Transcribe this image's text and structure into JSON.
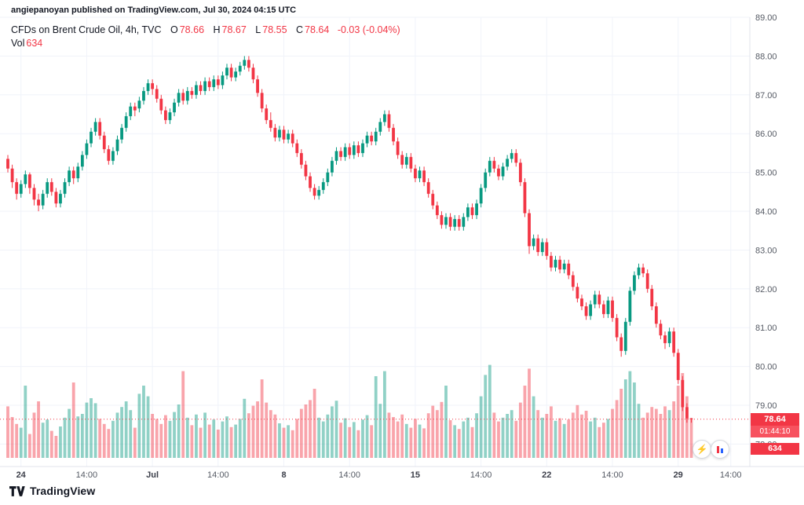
{
  "window": {
    "published_line": "angiepanoyan published on TradingView.com, Jul 30, 2024 04:15 UTC"
  },
  "legend": {
    "title": "CFDs on Brent Crude Oil, 4h, TVC",
    "o_label": "O",
    "o": "78.66",
    "h_label": "H",
    "h": "78.67",
    "l_label": "L",
    "l": "78.55",
    "c_label": "C",
    "c": "78.64",
    "change": "-0.03 (-0.04%)",
    "vol_label": "Vol",
    "vol": "634"
  },
  "price_axis": {
    "ticks": [
      "89.00",
      "88.00",
      "87.00",
      "86.00",
      "85.00",
      "84.00",
      "83.00",
      "82.00",
      "81.00",
      "80.00",
      "79.00",
      "78.00"
    ]
  },
  "time_axis": {
    "labels": [
      {
        "text": "24",
        "index": 3,
        "major": true
      },
      {
        "text": "14:00",
        "index": 18,
        "major": false
      },
      {
        "text": "Jul",
        "index": 33,
        "major": true
      },
      {
        "text": "14:00",
        "index": 48,
        "major": false
      },
      {
        "text": "8",
        "index": 63,
        "major": true
      },
      {
        "text": "14:00",
        "index": 78,
        "major": false
      },
      {
        "text": "15",
        "index": 93,
        "major": true
      },
      {
        "text": "14:00",
        "index": 108,
        "major": false
      },
      {
        "text": "22",
        "index": 123,
        "major": true
      },
      {
        "text": "14:00",
        "index": 138,
        "major": false
      },
      {
        "text": "29",
        "index": 153,
        "major": true
      },
      {
        "text": "14:00",
        "index": 165,
        "major": false
      }
    ]
  },
  "last_price": {
    "label": "78.64",
    "countdown": "01:44:10",
    "volume_label": "634"
  },
  "footer": {
    "brand": "TradingView"
  },
  "colors": {
    "up": "#089981",
    "down": "#f23645",
    "vol_up": "rgba(8,153,129,0.45)",
    "vol_down": "rgba(242,54,69,0.45)",
    "grid": "#f0f3fa",
    "axis_text": "#555a64",
    "axis_text_major": "#3c3f4a",
    "border": "#e0e3eb",
    "badge_bg": "#f23645",
    "countdown_bg": "#f7525f",
    "text": "#131722"
  },
  "chart_data": {
    "type": "candlestick",
    "title": "CFDs on Brent Crude Oil, 4h, TVC",
    "symbol": "Brent Crude Oil CFD",
    "interval": "4h",
    "exchange": "TVC",
    "last_bar": {
      "open": 78.66,
      "high": 78.67,
      "low": 78.55,
      "close": 78.64,
      "change": "-0.03 (-0.04%)",
      "volume": 634
    },
    "ylim": [
      77.42,
      89.0
    ],
    "vol_axis_max": 1500,
    "columns": [
      "open",
      "high",
      "low",
      "close",
      "volume"
    ],
    "candles": [
      [
        85.35,
        85.45,
        85.0,
        85.1,
        820
      ],
      [
        85.1,
        85.2,
        84.6,
        84.75,
        650
      ],
      [
        84.75,
        84.85,
        84.3,
        84.45,
        540
      ],
      [
        84.45,
        84.8,
        84.35,
        84.7,
        480
      ],
      [
        84.7,
        85.05,
        84.6,
        84.95,
        1150
      ],
      [
        84.95,
        85.0,
        84.45,
        84.6,
        380
      ],
      [
        84.6,
        84.7,
        84.15,
        84.3,
        720
      ],
      [
        84.3,
        84.45,
        84.0,
        84.15,
        900
      ],
      [
        84.15,
        84.55,
        84.05,
        84.45,
        560
      ],
      [
        84.45,
        84.85,
        84.35,
        84.75,
        610
      ],
      [
        84.75,
        84.85,
        84.4,
        84.5,
        430
      ],
      [
        84.5,
        84.6,
        84.1,
        84.2,
        350
      ],
      [
        84.2,
        84.55,
        84.1,
        84.45,
        500
      ],
      [
        84.45,
        84.85,
        84.35,
        84.75,
        640
      ],
      [
        84.75,
        85.15,
        84.65,
        85.05,
        780
      ],
      [
        85.05,
        85.15,
        84.7,
        84.85,
        1200
      ],
      [
        84.85,
        85.25,
        84.75,
        85.15,
        660
      ],
      [
        85.15,
        85.55,
        85.05,
        85.45,
        700
      ],
      [
        85.45,
        85.85,
        85.35,
        85.75,
        880
      ],
      [
        85.75,
        86.15,
        85.65,
        86.05,
        950
      ],
      [
        86.05,
        86.4,
        85.95,
        86.3,
        870
      ],
      [
        86.3,
        86.4,
        85.85,
        85.95,
        620
      ],
      [
        85.95,
        86.05,
        85.5,
        85.6,
        540
      ],
      [
        85.6,
        85.7,
        85.2,
        85.3,
        460
      ],
      [
        85.3,
        85.65,
        85.2,
        85.55,
        590
      ],
      [
        85.55,
        85.95,
        85.45,
        85.85,
        720
      ],
      [
        85.85,
        86.25,
        85.75,
        86.15,
        810
      ],
      [
        86.15,
        86.55,
        86.05,
        86.45,
        900
      ],
      [
        86.45,
        86.8,
        86.35,
        86.7,
        760
      ],
      [
        86.7,
        86.8,
        86.45,
        86.6,
        480
      ],
      [
        86.65,
        86.95,
        86.55,
        86.85,
        1020
      ],
      [
        86.85,
        87.2,
        86.75,
        87.1,
        1150
      ],
      [
        87.1,
        87.4,
        87.0,
        87.3,
        980
      ],
      [
        87.3,
        87.4,
        87.0,
        87.15,
        700
      ],
      [
        87.15,
        87.25,
        86.8,
        86.9,
        620
      ],
      [
        86.9,
        87.0,
        86.5,
        86.6,
        540
      ],
      [
        86.6,
        86.7,
        86.25,
        86.35,
        680
      ],
      [
        86.35,
        86.65,
        86.25,
        86.55,
        590
      ],
      [
        86.55,
        86.9,
        86.45,
        86.8,
        730
      ],
      [
        86.8,
        87.15,
        86.7,
        87.05,
        850
      ],
      [
        87.05,
        87.15,
        86.75,
        86.85,
        1380
      ],
      [
        86.85,
        87.2,
        86.75,
        87.1,
        640
      ],
      [
        87.1,
        87.2,
        86.9,
        87.0,
        520
      ],
      [
        87.0,
        87.35,
        86.9,
        87.25,
        690
      ],
      [
        87.25,
        87.35,
        87.0,
        87.1,
        480
      ],
      [
        87.1,
        87.45,
        87.0,
        87.35,
        720
      ],
      [
        87.35,
        87.45,
        87.1,
        87.2,
        530
      ],
      [
        87.2,
        87.5,
        87.1,
        87.4,
        610
      ],
      [
        87.4,
        87.5,
        87.15,
        87.25,
        450
      ],
      [
        87.25,
        87.6,
        87.15,
        87.5,
        580
      ],
      [
        87.5,
        87.8,
        87.4,
        87.7,
        660
      ],
      [
        87.7,
        87.8,
        87.35,
        87.45,
        490
      ],
      [
        87.45,
        87.7,
        87.35,
        87.6,
        530
      ],
      [
        87.6,
        87.85,
        87.5,
        87.75,
        620
      ],
      [
        87.75,
        88.0,
        87.65,
        87.9,
        940
      ],
      [
        87.9,
        88.0,
        87.6,
        87.7,
        710
      ],
      [
        87.7,
        87.8,
        87.3,
        87.4,
        830
      ],
      [
        87.4,
        87.5,
        86.95,
        87.05,
        900
      ],
      [
        87.05,
        87.15,
        86.55,
        86.65,
        1250
      ],
      [
        86.65,
        86.75,
        86.25,
        86.35,
        880
      ],
      [
        86.35,
        86.55,
        86.05,
        86.15,
        760
      ],
      [
        86.15,
        86.25,
        85.8,
        85.9,
        690
      ],
      [
        85.9,
        86.2,
        85.8,
        86.1,
        550
      ],
      [
        86.1,
        86.2,
        85.75,
        85.85,
        480
      ],
      [
        85.85,
        86.1,
        85.75,
        86.0,
        520
      ],
      [
        86.0,
        86.1,
        85.65,
        85.75,
        440
      ],
      [
        85.75,
        85.85,
        85.4,
        85.5,
        620
      ],
      [
        85.5,
        85.6,
        85.1,
        85.2,
        780
      ],
      [
        85.2,
        85.3,
        84.8,
        84.9,
        850
      ],
      [
        84.9,
        85.0,
        84.5,
        84.6,
        920
      ],
      [
        84.6,
        84.7,
        84.3,
        84.4,
        1100
      ],
      [
        84.4,
        84.65,
        84.3,
        84.55,
        640
      ],
      [
        84.55,
        84.85,
        84.45,
        84.75,
        580
      ],
      [
        84.75,
        85.1,
        84.65,
        85.0,
        690
      ],
      [
        85.0,
        85.4,
        84.9,
        85.3,
        820
      ],
      [
        85.3,
        85.65,
        85.2,
        85.55,
        910
      ],
      [
        85.55,
        85.65,
        85.3,
        85.4,
        560
      ],
      [
        85.4,
        85.75,
        85.3,
        85.65,
        630
      ],
      [
        85.65,
        85.75,
        85.35,
        85.45,
        490
      ],
      [
        85.45,
        85.8,
        85.35,
        85.7,
        570
      ],
      [
        85.7,
        85.8,
        85.4,
        85.5,
        440
      ],
      [
        85.5,
        85.85,
        85.4,
        85.75,
        610
      ],
      [
        85.75,
        86.05,
        85.65,
        85.95,
        680
      ],
      [
        85.95,
        86.05,
        85.7,
        85.8,
        520
      ],
      [
        85.8,
        86.15,
        85.7,
        86.05,
        1300
      ],
      [
        86.05,
        86.4,
        85.95,
        86.3,
        860
      ],
      [
        86.3,
        86.6,
        86.2,
        86.5,
        1380
      ],
      [
        86.5,
        86.6,
        86.05,
        86.15,
        720
      ],
      [
        86.15,
        86.25,
        85.7,
        85.8,
        650
      ],
      [
        85.8,
        85.9,
        85.35,
        85.45,
        580
      ],
      [
        85.45,
        85.55,
        85.1,
        85.2,
        690
      ],
      [
        85.2,
        85.5,
        85.1,
        85.4,
        540
      ],
      [
        85.4,
        85.5,
        85.0,
        85.1,
        480
      ],
      [
        85.1,
        85.2,
        84.75,
        84.85,
        620
      ],
      [
        84.85,
        85.15,
        84.75,
        85.05,
        530
      ],
      [
        85.05,
        85.15,
        84.65,
        84.75,
        470
      ],
      [
        84.75,
        84.85,
        84.35,
        84.45,
        710
      ],
      [
        84.45,
        84.55,
        84.05,
        84.15,
        830
      ],
      [
        84.15,
        84.25,
        83.8,
        83.9,
        760
      ],
      [
        83.9,
        84.0,
        83.55,
        83.65,
        890
      ],
      [
        83.65,
        83.95,
        83.55,
        83.85,
        1150
      ],
      [
        83.85,
        83.95,
        83.5,
        83.6,
        600
      ],
      [
        83.6,
        83.9,
        83.5,
        83.8,
        520
      ],
      [
        83.8,
        83.9,
        83.5,
        83.6,
        460
      ],
      [
        83.6,
        83.95,
        83.5,
        83.85,
        580
      ],
      [
        83.85,
        84.2,
        83.75,
        84.1,
        640
      ],
      [
        84.1,
        84.2,
        83.8,
        83.9,
        490
      ],
      [
        83.9,
        84.3,
        83.8,
        84.2,
        710
      ],
      [
        84.2,
        84.7,
        84.1,
        84.6,
        980
      ],
      [
        84.6,
        85.1,
        84.5,
        85.0,
        1320
      ],
      [
        85.0,
        85.4,
        84.9,
        85.3,
        1480
      ],
      [
        85.3,
        85.4,
        85.0,
        85.1,
        720
      ],
      [
        85.1,
        85.2,
        84.8,
        84.9,
        580
      ],
      [
        84.9,
        85.25,
        84.8,
        85.15,
        640
      ],
      [
        85.15,
        85.45,
        85.05,
        85.35,
        700
      ],
      [
        85.35,
        85.6,
        85.25,
        85.5,
        760
      ],
      [
        85.5,
        85.6,
        85.15,
        85.25,
        590
      ],
      [
        85.25,
        85.35,
        84.65,
        84.75,
        880
      ],
      [
        84.75,
        84.85,
        83.85,
        83.95,
        1150
      ],
      [
        83.95,
        84.05,
        82.9,
        83.1,
        1420
      ],
      [
        83.1,
        83.4,
        83.0,
        83.3,
        980
      ],
      [
        83.3,
        83.4,
        82.85,
        82.95,
        760
      ],
      [
        82.95,
        83.3,
        82.85,
        83.2,
        640
      ],
      [
        83.2,
        83.3,
        82.75,
        82.85,
        700
      ],
      [
        82.85,
        82.95,
        82.45,
        82.55,
        820
      ],
      [
        82.55,
        82.85,
        82.45,
        82.75,
        590
      ],
      [
        82.75,
        82.85,
        82.4,
        82.5,
        630
      ],
      [
        82.5,
        82.75,
        82.4,
        82.65,
        540
      ],
      [
        82.65,
        82.75,
        82.25,
        82.35,
        610
      ],
      [
        82.35,
        82.45,
        81.95,
        82.05,
        720
      ],
      [
        82.05,
        82.15,
        81.65,
        81.75,
        840
      ],
      [
        81.75,
        81.85,
        81.45,
        81.55,
        690
      ],
      [
        81.55,
        81.65,
        81.2,
        81.3,
        750
      ],
      [
        81.3,
        81.7,
        81.2,
        81.6,
        580
      ],
      [
        81.6,
        81.95,
        81.5,
        81.85,
        640
      ],
      [
        81.85,
        81.95,
        81.5,
        81.6,
        490
      ],
      [
        81.6,
        81.7,
        81.25,
        81.35,
        560
      ],
      [
        81.35,
        81.8,
        81.25,
        81.7,
        620
      ],
      [
        81.7,
        81.8,
        81.15,
        81.25,
        780
      ],
      [
        81.25,
        81.35,
        80.65,
        80.75,
        920
      ],
      [
        80.75,
        80.85,
        80.25,
        80.4,
        1100
      ],
      [
        80.4,
        81.25,
        80.3,
        81.15,
        1250
      ],
      [
        81.15,
        82.05,
        81.05,
        81.95,
        1380
      ],
      [
        81.95,
        82.45,
        81.85,
        82.35,
        1200
      ],
      [
        82.35,
        82.65,
        82.25,
        82.55,
        860
      ],
      [
        82.55,
        82.65,
        82.3,
        82.4,
        640
      ],
      [
        82.4,
        82.5,
        81.9,
        82.0,
        720
      ],
      [
        82.0,
        82.1,
        81.45,
        81.55,
        810
      ],
      [
        81.55,
        81.65,
        81.0,
        81.1,
        780
      ],
      [
        81.1,
        81.2,
        80.7,
        80.8,
        700
      ],
      [
        80.8,
        80.9,
        80.45,
        80.6,
        820
      ],
      [
        80.6,
        81.0,
        80.5,
        80.9,
        760
      ],
      [
        80.9,
        81.0,
        80.25,
        80.35,
        900
      ],
      [
        80.35,
        80.45,
        79.55,
        79.65,
        1150
      ],
      [
        79.65,
        79.75,
        78.85,
        78.95,
        1350
      ],
      [
        78.95,
        79.05,
        78.55,
        78.66,
        980
      ],
      [
        78.66,
        78.67,
        78.55,
        78.64,
        634
      ]
    ]
  }
}
